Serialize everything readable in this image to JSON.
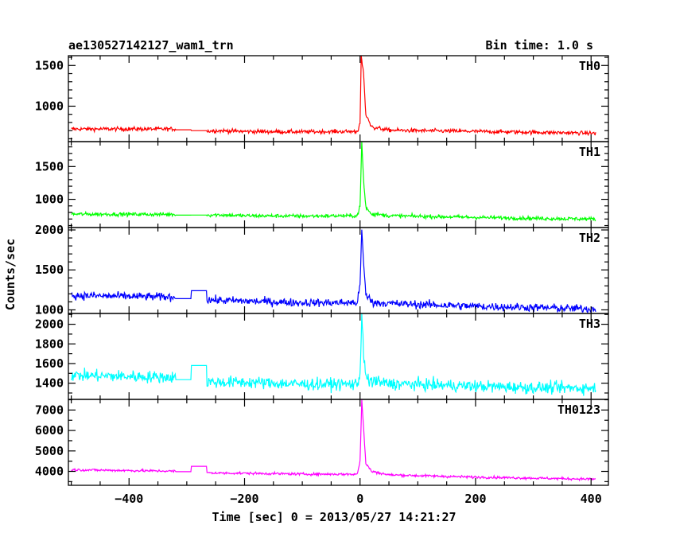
{
  "header": {
    "left_title": "ae130527142127_wam1_trn",
    "right_title": "Bin time: 1.0 s"
  },
  "axes": {
    "ylabel": "Counts/sec",
    "xlabel": "Time [sec] 0 = 2013/05/27 14:21:27",
    "xlim": [
      -505,
      430
    ],
    "xticks_major": [
      -400,
      -200,
      0,
      200,
      400
    ],
    "xtick_minor_step": 50
  },
  "chart_data": {
    "type": "line",
    "x": {
      "start": -500,
      "step": 1,
      "end": 408
    },
    "common_gap": [
      -320,
      -265
    ],
    "panels": [
      {
        "name": "TH0",
        "color": "#ff0000",
        "ylim": [
          565,
          1620
        ],
        "yticks": [
          1000,
          1500
        ],
        "ytick_minor_step": 100,
        "segments": [
          [
            -500,
            720
          ],
          [
            -320,
            720
          ],
          [
            -280,
            685
          ],
          [
            -250,
            700
          ],
          [
            -200,
            690
          ],
          [
            -100,
            685
          ],
          [
            -5,
            690
          ],
          [
            0,
            780
          ],
          [
            2,
            1620
          ],
          [
            6,
            1400
          ],
          [
            10,
            900
          ],
          [
            20,
            745
          ],
          [
            50,
            705
          ],
          [
            200,
            690
          ],
          [
            300,
            680
          ],
          [
            408,
            668
          ]
        ],
        "gap_level": 700,
        "noise": 24
      },
      {
        "name": "TH1",
        "color": "#00ff00",
        "ylim": [
          570,
          1880
        ],
        "yticks": [
          1000,
          1500
        ],
        "ytick_minor_step": 100,
        "segments": [
          [
            -500,
            775
          ],
          [
            -320,
            770
          ],
          [
            -280,
            750
          ],
          [
            -250,
            765
          ],
          [
            -200,
            750
          ],
          [
            -100,
            745
          ],
          [
            -5,
            750
          ],
          [
            0,
            900
          ],
          [
            3,
            1880
          ],
          [
            6,
            1300
          ],
          [
            10,
            880
          ],
          [
            20,
            780
          ],
          [
            50,
            750
          ],
          [
            200,
            725
          ],
          [
            300,
            710
          ],
          [
            408,
            700
          ]
        ],
        "gap_level": 760,
        "noise": 28
      },
      {
        "name": "TH2",
        "color": "#0000ff",
        "ylim": [
          955,
          2030
        ],
        "yticks": [
          1000,
          1500,
          2000
        ],
        "ytick_minor_step": 100,
        "segments": [
          [
            -500,
            1180
          ],
          [
            -320,
            1160
          ],
          [
            -280,
            1140
          ],
          [
            -250,
            1120
          ],
          [
            -200,
            1110
          ],
          [
            -100,
            1090
          ],
          [
            -5,
            1090
          ],
          [
            0,
            1300
          ],
          [
            3,
            2000
          ],
          [
            6,
            1600
          ],
          [
            10,
            1200
          ],
          [
            20,
            1100
          ],
          [
            50,
            1080
          ],
          [
            200,
            1045
          ],
          [
            300,
            1030
          ],
          [
            408,
            1010
          ]
        ],
        "gap_level": 1240,
        "noise": 50
      },
      {
        "name": "TH3",
        "color": "#00ffff",
        "ylim": [
          1235,
          2110
        ],
        "yticks": [
          1400,
          1600,
          1800,
          2000
        ],
        "ytick_minor_step": 100,
        "segments": [
          [
            -500,
            1480
          ],
          [
            -320,
            1460
          ],
          [
            -280,
            1420
          ],
          [
            -250,
            1410
          ],
          [
            -200,
            1410
          ],
          [
            -100,
            1390
          ],
          [
            -5,
            1390
          ],
          [
            0,
            1500
          ],
          [
            3,
            2100
          ],
          [
            6,
            1700
          ],
          [
            10,
            1450
          ],
          [
            20,
            1420
          ],
          [
            50,
            1395
          ],
          [
            200,
            1370
          ],
          [
            300,
            1355
          ],
          [
            408,
            1350
          ]
        ],
        "gap_level": 1580,
        "noise": 60
      },
      {
        "name": "TH0123",
        "color": "#ff00ff",
        "ylim": [
          3320,
          7520
        ],
        "yticks": [
          4000,
          5000,
          6000,
          7000
        ],
        "ytick_minor_step": 500,
        "segments": [
          [
            -500,
            4080
          ],
          [
            -320,
            4010
          ],
          [
            -280,
            3960
          ],
          [
            -250,
            3920
          ],
          [
            -200,
            3910
          ],
          [
            -100,
            3870
          ],
          [
            -5,
            3860
          ],
          [
            0,
            4500
          ],
          [
            3,
            7500
          ],
          [
            6,
            6200
          ],
          [
            10,
            4400
          ],
          [
            20,
            4000
          ],
          [
            50,
            3830
          ],
          [
            200,
            3720
          ],
          [
            300,
            3670
          ],
          [
            408,
            3620
          ]
        ],
        "gap_level": 4250,
        "noise": 60
      }
    ]
  }
}
